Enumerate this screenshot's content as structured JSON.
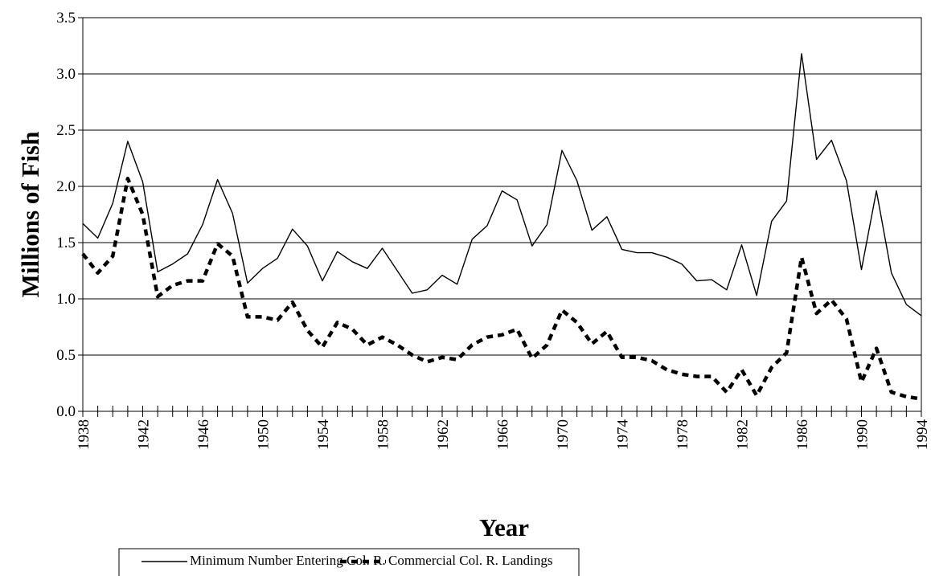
{
  "chart_data": {
    "type": "line",
    "xlabel": "Year",
    "ylabel": "Millions of Fish",
    "x": [
      1938,
      1939,
      1940,
      1941,
      1942,
      1943,
      1944,
      1945,
      1946,
      1947,
      1948,
      1949,
      1950,
      1951,
      1952,
      1953,
      1954,
      1955,
      1956,
      1957,
      1958,
      1959,
      1960,
      1961,
      1962,
      1963,
      1964,
      1965,
      1966,
      1967,
      1968,
      1969,
      1970,
      1971,
      1972,
      1973,
      1974,
      1975,
      1976,
      1977,
      1978,
      1979,
      1980,
      1981,
      1982,
      1983,
      1984,
      1985,
      1986,
      1987,
      1988,
      1989,
      1990,
      1991,
      1992,
      1993,
      1994
    ],
    "series": [
      {
        "name": "Minimum Number Entering Col. R.",
        "color": "#000000",
        "style": "solid",
        "values": [
          1.67,
          1.54,
          1.85,
          2.4,
          2.04,
          1.24,
          1.31,
          1.4,
          1.66,
          2.06,
          1.76,
          1.14,
          1.27,
          1.36,
          1.62,
          1.47,
          1.16,
          1.42,
          1.33,
          1.27,
          1.45,
          1.25,
          1.05,
          1.08,
          1.21,
          1.13,
          1.53,
          1.65,
          1.96,
          1.88,
          1.47,
          1.66,
          2.32,
          2.05,
          1.61,
          1.73,
          1.44,
          1.41,
          1.41,
          1.37,
          1.31,
          1.16,
          1.17,
          1.08,
          1.48,
          1.03,
          1.69,
          1.87,
          3.18,
          2.24,
          2.41,
          2.05,
          1.26,
          1.96,
          1.23,
          0.95,
          0.85
        ]
      },
      {
        "name": "Commercial Col. R. Landings",
        "color": "#000000",
        "style": "dashed",
        "values": [
          1.4,
          1.23,
          1.38,
          2.07,
          1.75,
          1.02,
          1.12,
          1.16,
          1.16,
          1.49,
          1.38,
          0.84,
          0.84,
          0.81,
          0.97,
          0.72,
          0.57,
          0.79,
          0.73,
          0.59,
          0.66,
          0.59,
          0.5,
          0.44,
          0.48,
          0.46,
          0.59,
          0.66,
          0.68,
          0.73,
          0.47,
          0.59,
          0.9,
          0.79,
          0.6,
          0.71,
          0.48,
          0.48,
          0.45,
          0.37,
          0.33,
          0.31,
          0.31,
          0.17,
          0.37,
          0.14,
          0.39,
          0.52,
          1.37,
          0.87,
          0.99,
          0.82,
          0.26,
          0.56,
          0.17,
          0.13,
          0.11
        ]
      }
    ],
    "xlim": [
      1938,
      1994
    ],
    "xticks": [
      1938,
      1942,
      1946,
      1950,
      1954,
      1958,
      1962,
      1966,
      1970,
      1974,
      1978,
      1982,
      1986,
      1990,
      1994
    ],
    "ylim": [
      0,
      3.5
    ],
    "yticks": [
      {
        "value": 0,
        "label": "0.0"
      },
      0.5,
      {
        "value": 1,
        "label": "1.0"
      },
      1.5,
      {
        "value": 2,
        "label": "2.0"
      },
      2.5,
      {
        "value": 3,
        "label": "3.0"
      },
      3.5
    ],
    "grid": true,
    "legend": "bottom"
  }
}
